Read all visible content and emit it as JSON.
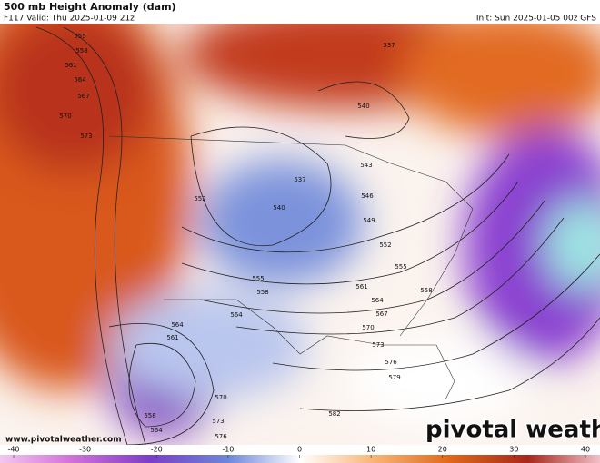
{
  "header": {
    "title": "500 mb Height Anomaly (dam)",
    "valid": "F117 Valid: Thu 2025-01-09 21z",
    "init": "Init: Sun 2025-01-05 00z GFS"
  },
  "watermark": "www.pivotalweather.com",
  "brand": "pivotal weather",
  "colorbar": {
    "ticks": [
      -40,
      -30,
      -20,
      -10,
      0,
      10,
      20,
      30,
      40
    ]
  },
  "contour_labels": [
    555,
    558,
    561,
    564,
    567,
    570,
    573,
    537,
    537,
    540,
    540,
    543,
    546,
    549,
    552,
    555,
    558,
    552,
    555,
    558,
    561,
    564,
    567,
    570,
    573,
    576,
    579,
    582,
    564,
    561,
    564,
    570,
    573,
    576,
    558,
    564
  ]
}
